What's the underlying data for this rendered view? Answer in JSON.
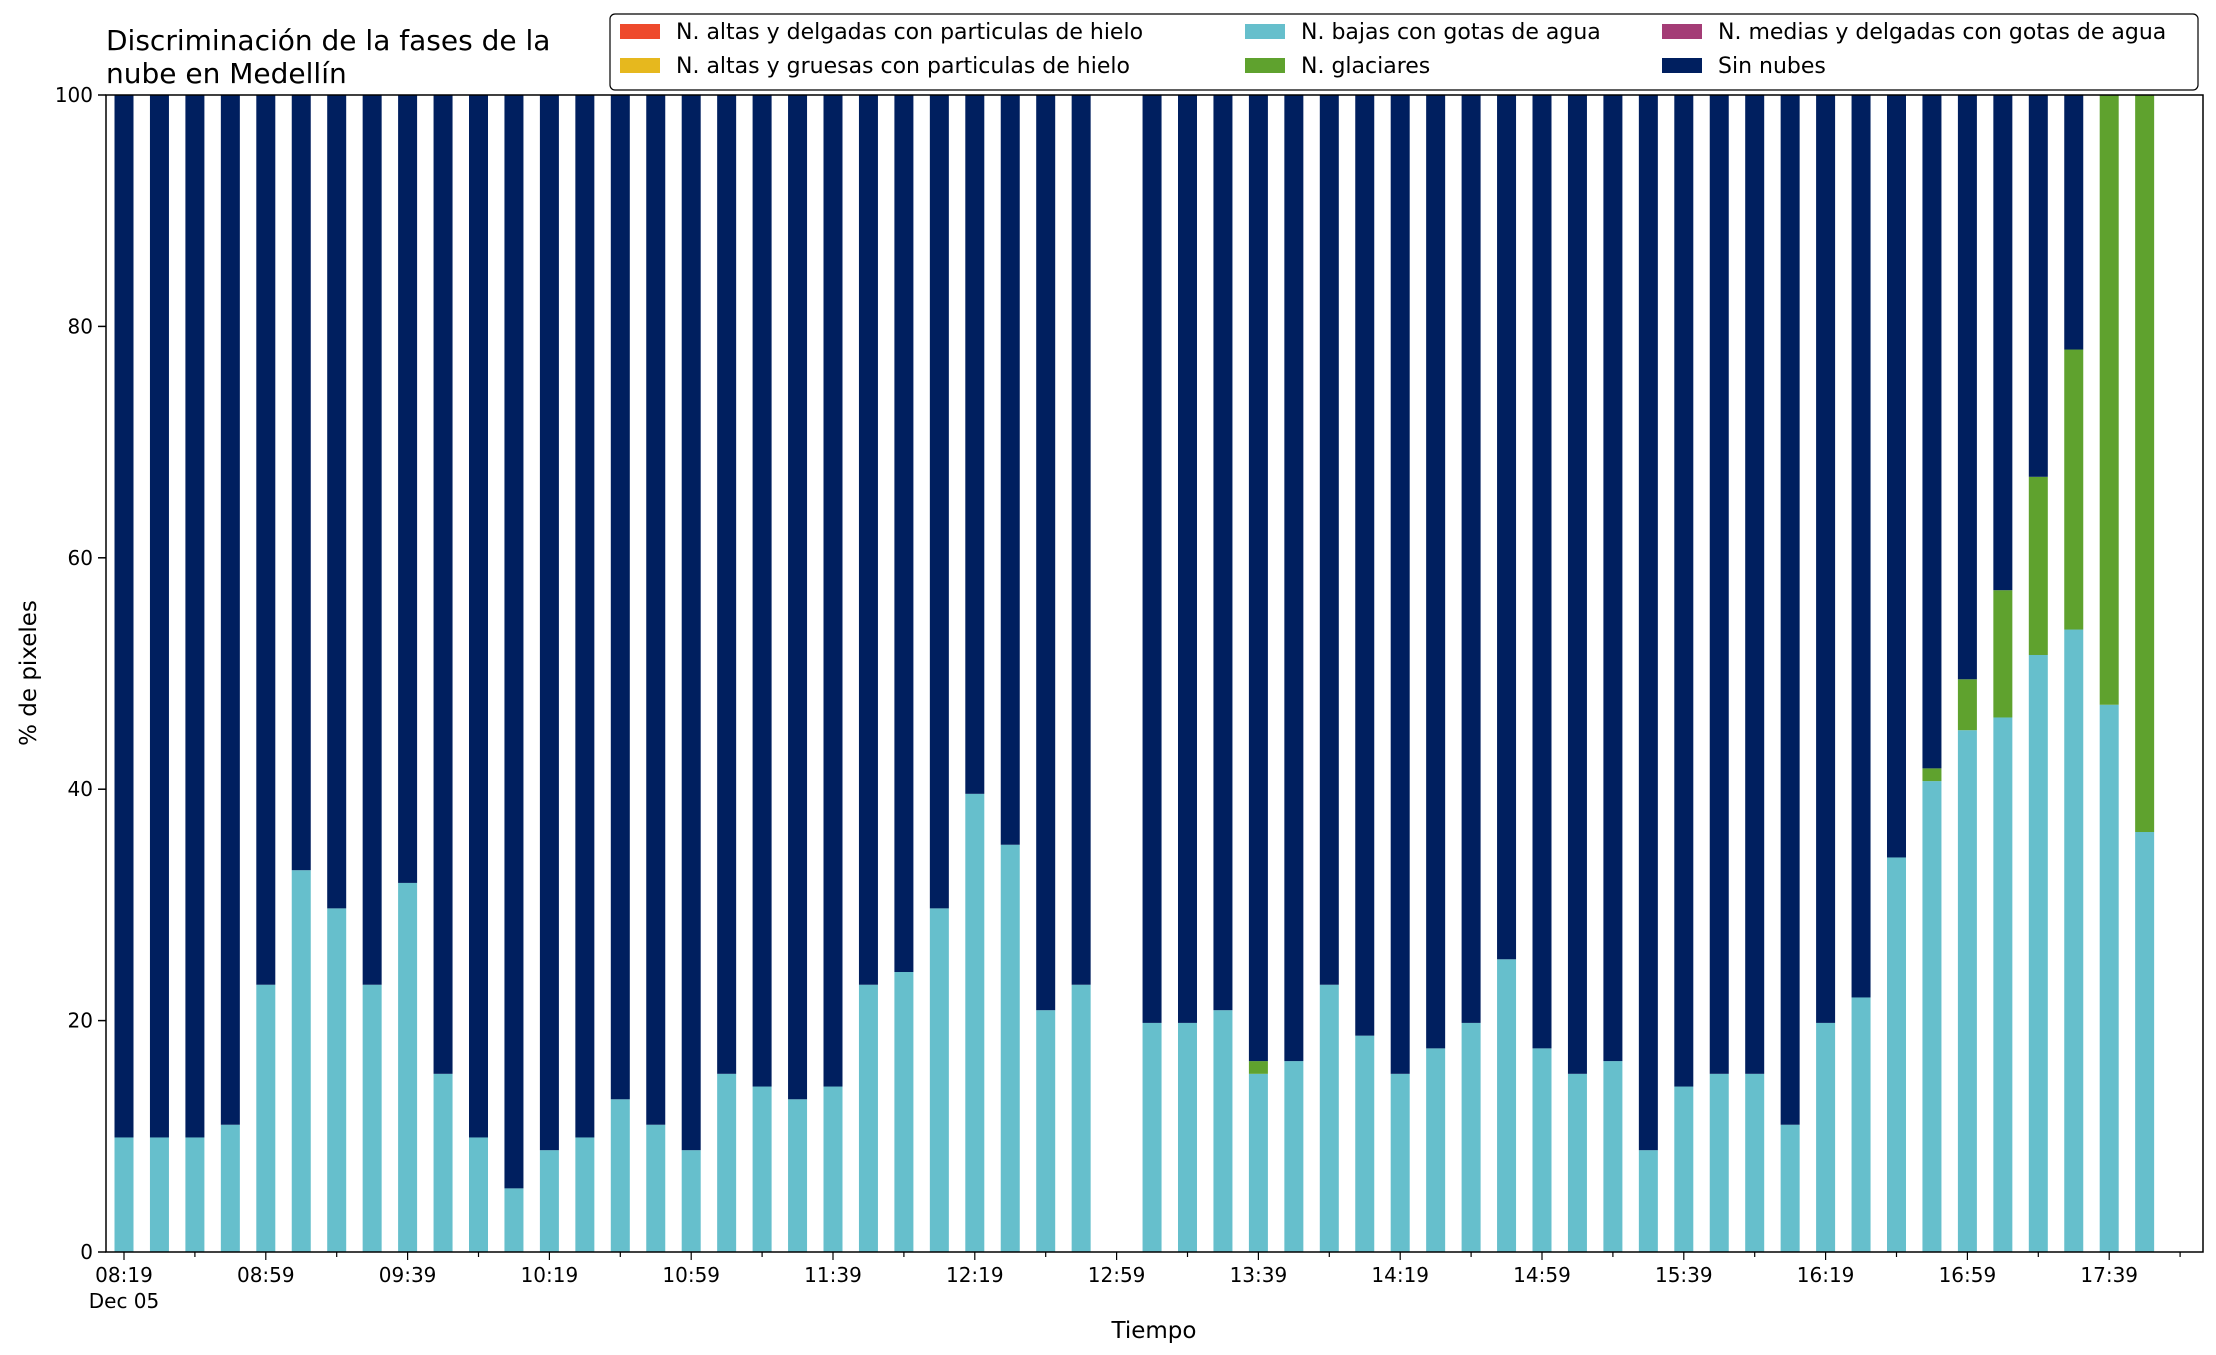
{
  "chart_data": {
    "type": "bar",
    "stacked": true,
    "title_lines": [
      "Discriminación de la fases de la",
      "nube en Medellín"
    ],
    "xlabel": "Tiempo",
    "ylabel": "% de pixeles",
    "ylim": [
      0,
      100
    ],
    "yticks": [
      0,
      20,
      40,
      60,
      80,
      100
    ],
    "xtick_labels": [
      "08:19",
      "08:59",
      "09:39",
      "10:19",
      "10:59",
      "11:39",
      "12:19",
      "12:59",
      "13:39",
      "14:19",
      "14:59",
      "15:39",
      "16:19",
      "16:59",
      "17:39"
    ],
    "xtick_sublabel": "Dec 05",
    "grid": false,
    "legend_placement": "upper-right",
    "legend_columns": 3,
    "categories": [
      "08:19",
      "08:29",
      "08:39",
      "08:49",
      "08:59",
      "09:09",
      "09:19",
      "09:29",
      "09:39",
      "09:49",
      "09:59",
      "10:09",
      "10:19",
      "10:29",
      "10:39",
      "10:49",
      "10:59",
      "11:09",
      "11:19",
      "11:29",
      "11:39",
      "11:49",
      "11:59",
      "12:09",
      "12:19",
      "12:29",
      "12:39",
      "12:49",
      "12:59",
      "13:09",
      "13:19",
      "13:29",
      "13:39",
      "13:49",
      "13:59",
      "14:09",
      "14:19",
      "14:29",
      "14:39",
      "14:49",
      "14:59",
      "15:09",
      "15:19",
      "15:29",
      "15:39",
      "15:49",
      "15:59",
      "16:09",
      "16:19",
      "16:29",
      "16:39",
      "16:49",
      "16:59",
      "17:09",
      "17:19",
      "17:29",
      "17:39",
      "17:49",
      "17:59"
    ],
    "series": [
      {
        "name": "N. altas y delgadas con particulas de hielo",
        "color": "#ee4a2c",
        "values": [
          0,
          0,
          0,
          0,
          0,
          0,
          0,
          0,
          0,
          0,
          0,
          0,
          0,
          0,
          0,
          0,
          0,
          0,
          0,
          0,
          0,
          0,
          0,
          0,
          0,
          0,
          0,
          0,
          0,
          0,
          0,
          0,
          0,
          0,
          0,
          0,
          0,
          0,
          0,
          0,
          0,
          0,
          0,
          0,
          0,
          0,
          0,
          0,
          0,
          0,
          0,
          0,
          0,
          0,
          0,
          0,
          0,
          0,
          0
        ]
      },
      {
        "name": "N. altas y gruesas con particulas de hielo",
        "color": "#e6b81e",
        "values": [
          0,
          0,
          0,
          0,
          0,
          0,
          0,
          0,
          0,
          0,
          0,
          0,
          0,
          0,
          0,
          0,
          0,
          0,
          0,
          0,
          0,
          0,
          0,
          0,
          0,
          0,
          0,
          0,
          0,
          0,
          0,
          0,
          0,
          0,
          0,
          0,
          0,
          0,
          0,
          0,
          0,
          0,
          0,
          0,
          0,
          0,
          0,
          0,
          0,
          0,
          0,
          0,
          0,
          0,
          0,
          0,
          0,
          0,
          0
        ]
      },
      {
        "name": "N. bajas con gotas de agua",
        "color": "#66bfcc",
        "values": [
          9.9,
          9.9,
          9.9,
          11.0,
          23.1,
          33.0,
          29.7,
          23.1,
          31.9,
          15.4,
          9.9,
          5.5,
          8.8,
          9.9,
          13.2,
          11.0,
          8.8,
          15.4,
          14.3,
          13.2,
          14.3,
          23.1,
          24.2,
          29.7,
          39.6,
          35.2,
          20.9,
          23.1,
          null,
          19.8,
          19.8,
          20.9,
          15.4,
          16.5,
          23.1,
          18.7,
          15.4,
          17.6,
          19.8,
          25.3,
          17.6,
          15.4,
          16.5,
          8.8,
          14.3,
          15.4,
          15.4,
          11.0,
          19.8,
          22.0,
          34.1,
          40.7,
          45.1,
          46.2,
          51.6,
          53.8,
          47.3,
          36.3,
          null
        ]
      },
      {
        "name": "N. glaciares",
        "color": "#5fa22e",
        "values": [
          0,
          0,
          0,
          0,
          0,
          0,
          0,
          0,
          0,
          0,
          0,
          0,
          0,
          0,
          0,
          0,
          0,
          0,
          0,
          0,
          0,
          0,
          0,
          0,
          0,
          0,
          0,
          0,
          null,
          0,
          0,
          0,
          1.1,
          0,
          0,
          0,
          0,
          0,
          0,
          0,
          0,
          0,
          0,
          0,
          0,
          0,
          0,
          0,
          0,
          0,
          0,
          1.1,
          4.4,
          11.0,
          15.4,
          24.2,
          52.7,
          63.7,
          null
        ]
      },
      {
        "name": "N. medias y delgadas con gotas de agua",
        "color": "#a43c76",
        "values": [
          0,
          0,
          0,
          0,
          0,
          0,
          0,
          0,
          0,
          0,
          0,
          0,
          0,
          0,
          0,
          0,
          0,
          0,
          0,
          0,
          0,
          0,
          0,
          0,
          0,
          0,
          0,
          0,
          0,
          0,
          0,
          0,
          0,
          0,
          0,
          0,
          0,
          0,
          0,
          0,
          0,
          0,
          0,
          0,
          0,
          0,
          0,
          0,
          0,
          0,
          0,
          0,
          0,
          0,
          0,
          0,
          0,
          0,
          0
        ]
      },
      {
        "name": "Sin nubes",
        "color": "#001f5f",
        "values": [
          90.1,
          90.1,
          90.1,
          89.0,
          76.9,
          67.0,
          70.3,
          76.9,
          68.1,
          84.6,
          90.1,
          94.5,
          91.2,
          90.1,
          86.8,
          89.0,
          91.2,
          84.6,
          85.7,
          86.8,
          85.7,
          76.9,
          75.8,
          70.3,
          60.4,
          64.8,
          79.1,
          76.9,
          null,
          80.2,
          80.2,
          79.1,
          83.5,
          83.5,
          76.9,
          81.3,
          84.6,
          82.4,
          80.2,
          74.7,
          82.4,
          84.6,
          83.5,
          91.2,
          85.7,
          84.6,
          84.6,
          89.0,
          80.2,
          78.0,
          65.9,
          58.2,
          50.5,
          42.8,
          33.0,
          22.0,
          0,
          0,
          null
        ]
      }
    ]
  }
}
